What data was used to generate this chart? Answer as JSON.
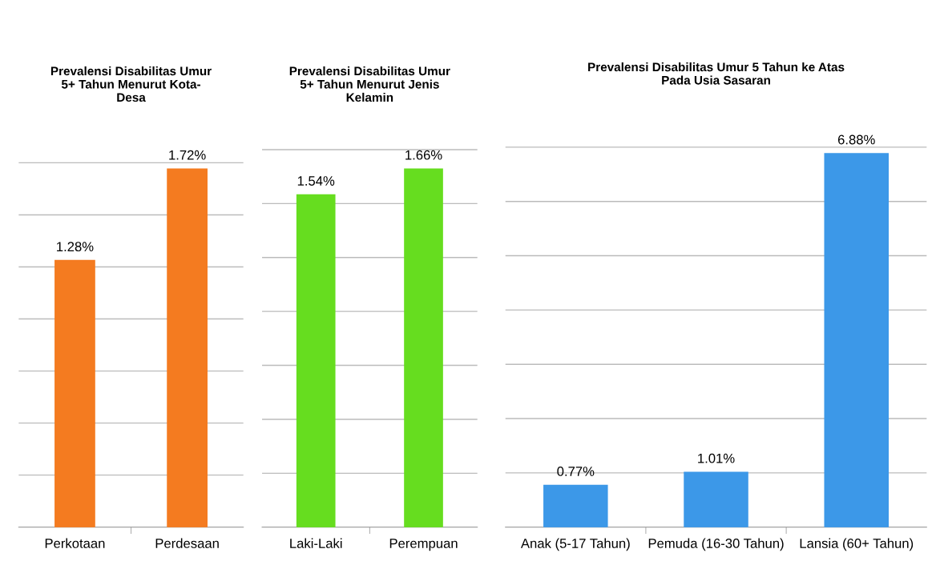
{
  "chart_data": [
    {
      "type": "bar",
      "title": "Prevalensi Disabilitas Umur\n5+ Tahun Menurut Kota-\nDesa",
      "categories": [
        "Perkotaan",
        "Perdesaan"
      ],
      "values": [
        1.28,
        1.72
      ],
      "value_labels": [
        "1.28%",
        "1.72%"
      ],
      "color": "#f47b20",
      "grid": "y",
      "tick_labels": "x"
    },
    {
      "type": "bar",
      "title": "Prevalensi Disabilitas Umur\n5+ Tahun Menurut Jenis\nKelamin",
      "categories": [
        "Laki-Laki",
        "Perempuan"
      ],
      "values": [
        1.54,
        1.66
      ],
      "value_labels": [
        "1.54%",
        "1.66%"
      ],
      "color": "#66dd1f",
      "grid": "y",
      "tick_labels": "x"
    },
    {
      "type": "bar",
      "title": "Prevalensi Disabilitas Umur 5 Tahun ke Atas\nPada Usia Sasaran",
      "categories": [
        "Anak (5-17 Tahun)",
        "Pemuda (16-30 Tahun)",
        "Lansia (60+ Tahun)"
      ],
      "values": [
        0.77,
        1.01,
        6.88
      ],
      "value_labels": [
        "0.77%",
        "1.01%",
        "6.88%"
      ],
      "color": "#3c98e8",
      "grid": "y",
      "tick_labels": "x"
    }
  ]
}
